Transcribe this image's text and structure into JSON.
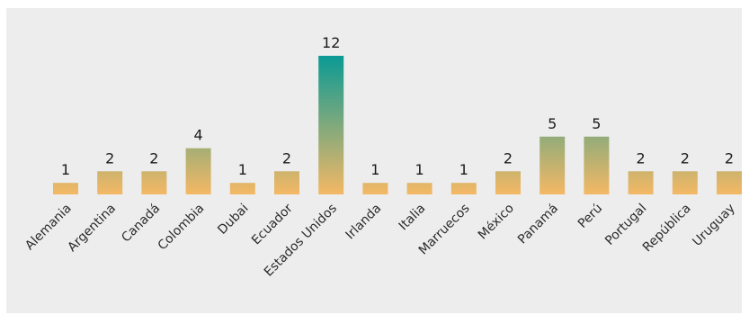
{
  "chart_data": {
    "type": "bar",
    "categories": [
      "Alemania",
      "Argentina",
      "Canadá",
      "Colombia",
      "Dubai",
      "Ecuador",
      "Estados Unidos",
      "Irlanda",
      "Italia",
      "Marruecos",
      "México",
      "Panamá",
      "Perú",
      "Portugal",
      "República",
      "Uruguay"
    ],
    "values": [
      1,
      2,
      2,
      4,
      1,
      2,
      12,
      1,
      1,
      1,
      2,
      5,
      5,
      2,
      2,
      2
    ],
    "ylim": [
      0,
      12
    ],
    "grid": false,
    "legend": "none",
    "data_labels": true
  },
  "colors": {
    "panel_background": "#ededed",
    "bar_bottom": "#f4b865",
    "bar_top_max": "#0a9a94",
    "label_text": "#1a1a1a"
  }
}
